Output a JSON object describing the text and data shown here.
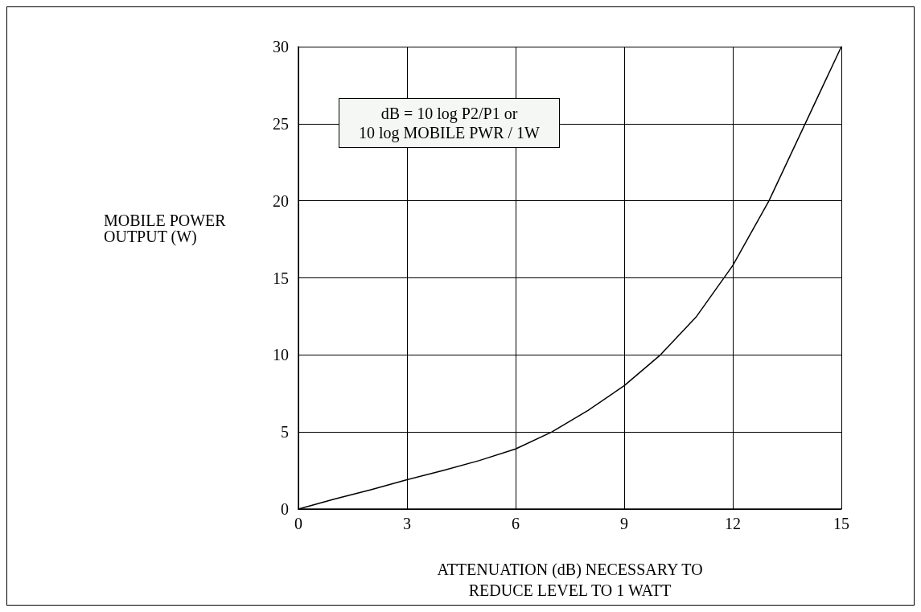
{
  "chart_data": {
    "type": "line",
    "xlabel": "ATTENUATION (dB) NECESSARY TO\nREDUCE LEVEL TO 1 WATT",
    "ylabel": "MOBILE POWER\nOUTPUT (W)",
    "annotations": [
      "dB = 10 log P2/P1 or\n10  log MOBILE PWR / 1W"
    ],
    "x": [
      0,
      1,
      2,
      3,
      4,
      5,
      6,
      7,
      8,
      9,
      10,
      11,
      12,
      13,
      14,
      15
    ],
    "series": [
      {
        "color": "#000000",
        "values": [
          0,
          0.65,
          1.25,
          1.9,
          2.5,
          3.15,
          3.9,
          5,
          6.4,
          8,
          10,
          12.5,
          15.8,
          20,
          25,
          30
        ]
      }
    ],
    "xlim": [
      0,
      15
    ],
    "xticks": [
      0,
      3,
      6,
      9,
      12,
      15
    ],
    "ylim": [
      0,
      30
    ],
    "yticks": [
      0,
      5,
      10,
      15,
      20,
      25,
      30
    ],
    "grid": true,
    "marker": "none",
    "line_style": "solid"
  }
}
